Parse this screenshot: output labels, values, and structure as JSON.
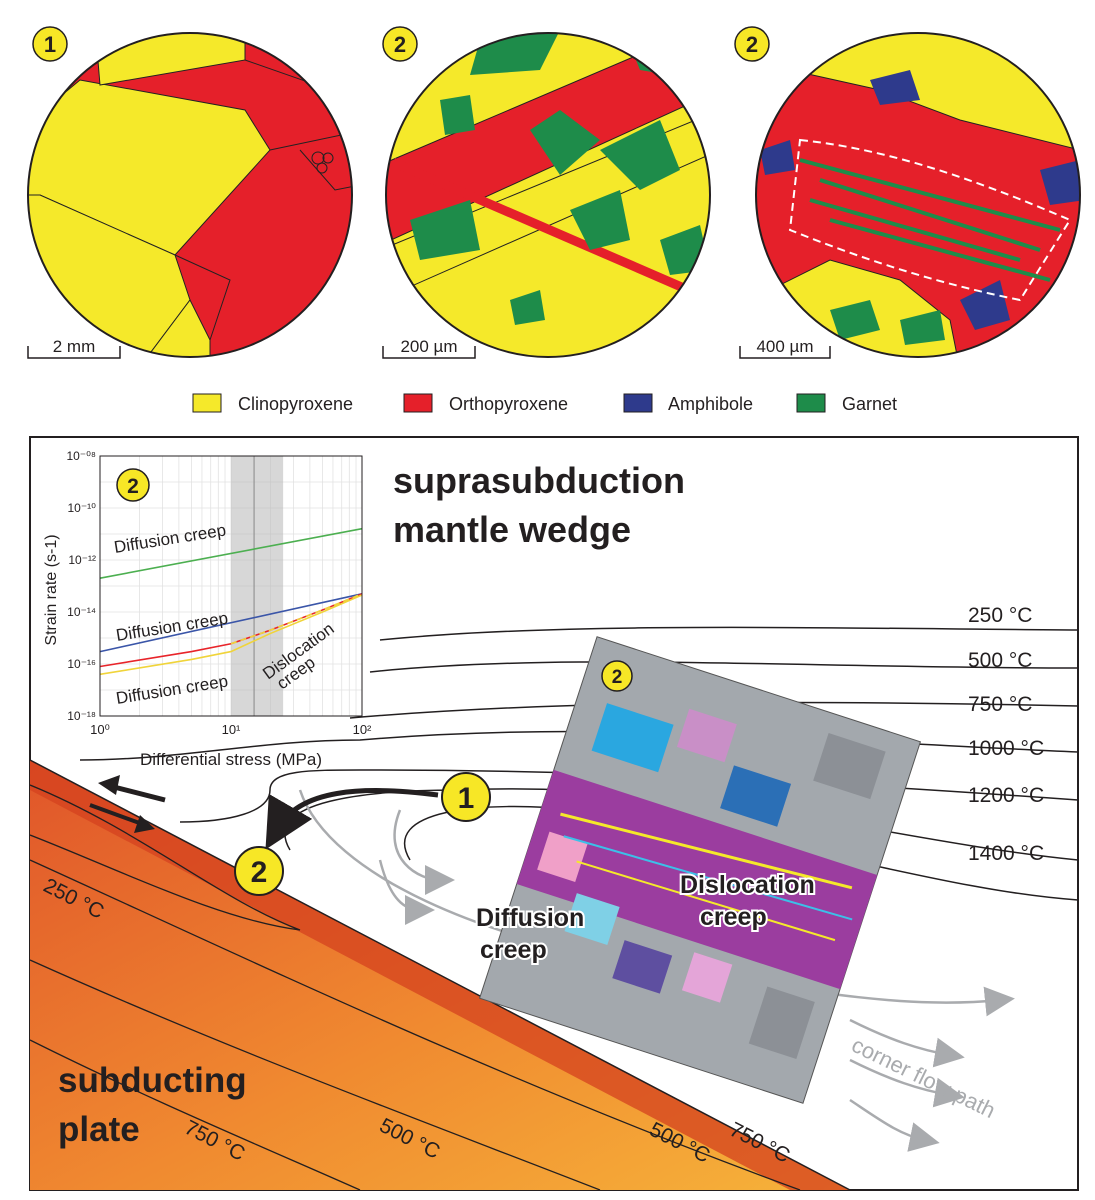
{
  "micrographs": [
    {
      "badge": "1",
      "scale": "2 mm"
    },
    {
      "badge": "2",
      "scale": "200 µm"
    },
    {
      "badge": "2",
      "scale": "400 µm"
    }
  ],
  "legend": [
    {
      "label": "Clinopyroxene",
      "color": "#f5e92a"
    },
    {
      "label": "Orthopyroxene",
      "color": "#e5202a"
    },
    {
      "label": "Amphibole",
      "color": "#2e3a8c"
    },
    {
      "label": "Garnet",
      "color": "#1e8c4a"
    }
  ],
  "diagram": {
    "title_line1": "suprasubduction",
    "title_line2": "mantle wedge",
    "plate_line1": "subducting",
    "plate_line2": "plate",
    "isotherms_wedge": [
      "250 °C",
      "500 °C",
      "750 °C",
      "1000 °C",
      "1200 °C",
      "1400 °C"
    ],
    "isotherms_plate": [
      "250 °C",
      "750 °C",
      "500 °C",
      "500 °C",
      "750 °C"
    ],
    "corner_flow": "corner flow path",
    "badge_1": "1",
    "badge_2": "2",
    "ebsd_badge": "2",
    "ebsd_label_dislocation_1": "Dislocation",
    "ebsd_label_dislocation_2": "creep",
    "ebsd_label_diffusion_1": "Diffusion",
    "ebsd_label_diffusion_2": "creep"
  },
  "chart_data": {
    "type": "line",
    "badge": "2",
    "xlabel": "Differential stress (MPa)",
    "ylabel": "Strain rate (s-1)",
    "x_scale": "log",
    "y_scale": "log",
    "xlim": [
      1,
      100
    ],
    "ylim": [
      1e-18,
      1e-08
    ],
    "x_ticks": [
      "10⁰",
      "10¹",
      "10²"
    ],
    "y_ticks": [
      "10⁻⁰⁸",
      "10⁻¹⁰",
      "10⁻¹²",
      "10⁻¹⁴",
      "10⁻¹⁶",
      "10⁻¹⁸"
    ],
    "grid": true,
    "shaded_range": [
      10,
      25
    ],
    "center_line": 15,
    "series": [
      {
        "color": "#4caf50",
        "x": [
          1,
          100
        ],
        "y": [
          2e-13,
          1.6e-11
        ]
      },
      {
        "color": "#3a55a8",
        "x": [
          1,
          100
        ],
        "y": [
          3e-16,
          5e-14
        ]
      },
      {
        "color": "#e8242a",
        "x": [
          1,
          5,
          10,
          20,
          50,
          100
        ],
        "y": [
          8e-17,
          3e-16,
          6e-16,
          2e-15,
          1.2e-14,
          5e-14
        ]
      },
      {
        "color": "#f0d43a",
        "x": [
          1,
          5,
          10,
          20,
          50,
          100
        ],
        "y": [
          4e-17,
          1.5e-16,
          3e-16,
          1.5e-15,
          1e-14,
          4.5e-14
        ]
      }
    ],
    "annotations": [
      "Diffusion creep",
      "Diffusion creep",
      "Diffusion creep",
      "Dislocation",
      "creep"
    ]
  }
}
